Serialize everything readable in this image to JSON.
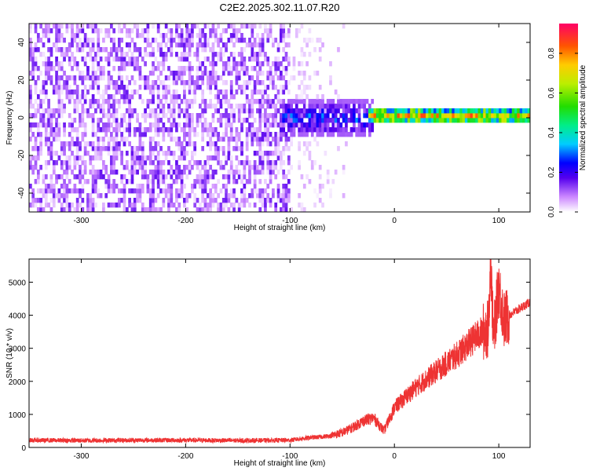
{
  "title": "C2E2.2025.302.11.07.R20",
  "chart_data": [
    {
      "type": "heatmap",
      "xlabel": "Height of straight line (km)",
      "ylabel": "Frequency (Hz)",
      "xlim": [
        -350,
        130
      ],
      "ylim": [
        -50,
        50
      ],
      "x_ticks": [
        -300,
        -200,
        -100,
        0,
        100
      ],
      "x_tick_labels": [
        "-300",
        "-200",
        "-100",
        "0",
        "100"
      ],
      "y_ticks": [
        -40,
        -20,
        0,
        20,
        40
      ],
      "y_tick_labels": [
        "-40",
        "-20",
        "0",
        "20",
        "40"
      ],
      "colorbar": {
        "label": "Normalized spectral amplitude",
        "range": [
          0,
          0.95
        ],
        "ticks": [
          0,
          0.2,
          0.4,
          0.6,
          0.8
        ],
        "tick_labels": [
          "0.0",
          "0.2",
          "0.4",
          "0.6",
          "0.8"
        ]
      },
      "regions": [
        {
          "x_range": [
            -350,
            -100
          ],
          "freq_range": [
            -50,
            50
          ],
          "amplitude": [
            0.0,
            0.15
          ],
          "pattern": "broadband noise"
        },
        {
          "x_range": [
            -100,
            -45
          ],
          "freq_range": [
            -50,
            50
          ],
          "amplitude": [
            0.0,
            0.05
          ],
          "pattern": "sparse faint noise"
        },
        {
          "x_range": [
            -110,
            -20
          ],
          "freq_range": [
            -10,
            10
          ],
          "amplitude": [
            0.1,
            0.4
          ],
          "pattern": "signal onset"
        },
        {
          "x_range": [
            -25,
            130
          ],
          "freq_range": [
            -3,
            4
          ],
          "center_freq": 1,
          "amplitude": [
            0.2,
            0.9
          ],
          "pattern": "narrow carrier line"
        }
      ]
    },
    {
      "type": "line",
      "xlabel": "Height of straight line (km)",
      "ylabel": "SNR (10 * v/v)",
      "xlim": [
        -350,
        130
      ],
      "ylim": [
        0,
        5700
      ],
      "x_ticks": [
        -300,
        -200,
        -100,
        0,
        100
      ],
      "x_tick_labels": [
        "-300",
        "-200",
        "-100",
        "0",
        "100"
      ],
      "y_ticks": [
        0,
        1000,
        2000,
        3000,
        4000,
        5000
      ],
      "y_tick_labels": [
        "0",
        "1000",
        "2000",
        "3000",
        "4000",
        "5000"
      ],
      "color": "#ee3333",
      "series": [
        {
          "x": [
            -350,
            -300,
            -250,
            -200,
            -150,
            -100,
            -90,
            -80,
            -70,
            -60,
            -50,
            -40,
            -30,
            -20,
            -10,
            0,
            10,
            20,
            30,
            40,
            50,
            60,
            70,
            80,
            85,
            90,
            92,
            95,
            100,
            105,
            110,
            120,
            130
          ],
          "values": [
            220,
            210,
            220,
            220,
            210,
            220,
            260,
            300,
            320,
            360,
            450,
            600,
            800,
            900,
            500,
            1200,
            1500,
            1800,
            2050,
            2300,
            2550,
            2800,
            3100,
            3400,
            3500,
            3600,
            5700,
            3300,
            4900,
            3850,
            4000,
            4200,
            4400
          ]
        }
      ]
    }
  ]
}
